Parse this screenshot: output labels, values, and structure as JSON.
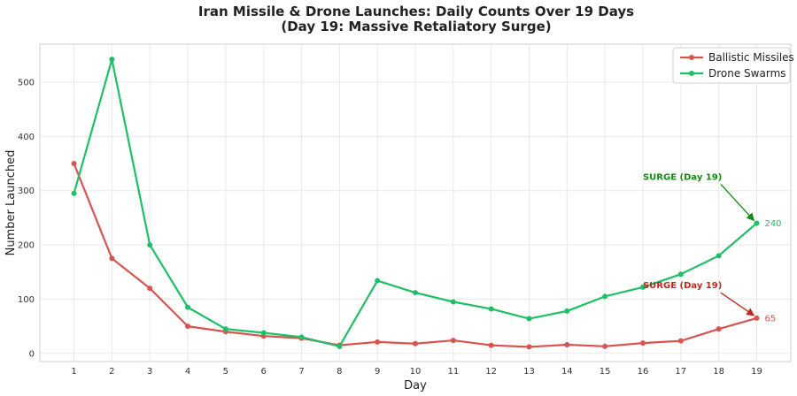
{
  "chart_data": {
    "type": "line",
    "title": "Iran Missile & Drone Launches: Daily Counts Over 19 Days",
    "subtitle": "(Day 19: Massive Retaliatory Surge)",
    "xlabel": "Day",
    "ylabel": "Number Launched",
    "x": [
      1,
      2,
      3,
      4,
      5,
      6,
      7,
      8,
      9,
      10,
      11,
      12,
      13,
      14,
      15,
      16,
      17,
      18,
      19
    ],
    "xlim": [
      0.1,
      19.9
    ],
    "ylim": [
      -15,
      570
    ],
    "yticks": [
      0,
      100,
      200,
      300,
      400,
      500
    ],
    "grid": true,
    "legend_position": "top-right",
    "series": [
      {
        "name": "Ballistic Missiles",
        "color": "#d9534f",
        "values": [
          350,
          175,
          120,
          50,
          40,
          32,
          28,
          15,
          21,
          18,
          24,
          15,
          12,
          16,
          13,
          19,
          23,
          45,
          65
        ]
      },
      {
        "name": "Drone Swarms",
        "color": "#1fbf68",
        "values": [
          295,
          542,
          200,
          85,
          45,
          38,
          30,
          13,
          134,
          112,
          95,
          82,
          64,
          78,
          105,
          122,
          146,
          180,
          240
        ]
      }
    ],
    "annotations": [
      {
        "text": "SURGE (Day 19)",
        "series": 1,
        "x": 19,
        "y": 240,
        "text_x": 16,
        "text_y": 320,
        "color": "#138a13"
      },
      {
        "text": "SURGE (Day 19)",
        "series": 0,
        "x": 19,
        "y": 65,
        "text_x": 16,
        "text_y": 120,
        "color": "#c0281e"
      }
    ],
    "end_labels": [
      {
        "text": "240",
        "series": 1,
        "x": 19,
        "y": 240
      },
      {
        "text": "65",
        "series": 0,
        "x": 19,
        "y": 65
      }
    ]
  }
}
